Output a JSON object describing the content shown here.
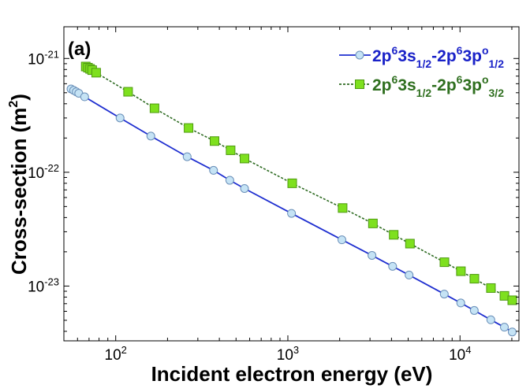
{
  "chart_data": {
    "type": "line",
    "panel_label": "(a)",
    "xlabel": "Incident electron energy (eV)",
    "ylabel": {
      "main": "Cross-section (m",
      "sup": "2",
      "close": ")"
    },
    "xscale": "log",
    "yscale": "log",
    "xlim": [
      50,
      22000
    ],
    "ylim": [
      3.3e-24,
      1.9e-21
    ],
    "x_ticks": [
      {
        "value": 100,
        "base": "10",
        "exp": "2"
      },
      {
        "value": 1000,
        "base": "10",
        "exp": "3"
      },
      {
        "value": 10000,
        "base": "10",
        "exp": "4"
      }
    ],
    "y_ticks": [
      {
        "value": 1e-21,
        "base": "10",
        "exp": "-21"
      },
      {
        "value": 1e-22,
        "base": "10",
        "exp": "-22"
      },
      {
        "value": 1e-23,
        "base": "10",
        "exp": "-23"
      }
    ],
    "grid": false,
    "legend_position": "top-right",
    "series": [
      {
        "legend_parts": [
          {
            "t": "2p",
            "s": ""
          },
          {
            "t": "6",
            "s": "sup"
          },
          {
            "t": "3s",
            "s": ""
          },
          {
            "t": "1/2",
            "s": "sub"
          },
          {
            "t": "-2p",
            "s": ""
          },
          {
            "t": "6",
            "s": "sup"
          },
          {
            "t": "3p",
            "s": ""
          },
          {
            "t": "o",
            "s": "sup"
          },
          {
            "t": "1/2",
            "s": "sub"
          }
        ],
        "color": "#1f2fd0",
        "legend_text_color": "#1a22c8",
        "marker": "circle",
        "marker_fill": "#c5e3f5",
        "marker_stroke": "#6a8fb8",
        "line_style": "solid",
        "x": [
          55,
          57,
          59,
          61,
          66,
          106,
          160,
          260,
          370,
          460,
          560,
          1050,
          2060,
          3080,
          4060,
          5060,
          8100,
          10100,
          12100,
          15100,
          18100,
          20100
        ],
        "y": [
          5.4e-22,
          5.25e-22,
          5.1e-22,
          4.95e-22,
          4.6e-22,
          3e-22,
          2.08e-22,
          1.37e-22,
          1.04e-22,
          8.5e-23,
          7.2e-23,
          4.35e-23,
          2.55e-23,
          1.86e-23,
          1.49e-23,
          1.25e-23,
          8.5e-24,
          7.1e-24,
          6.1e-24,
          5.05e-24,
          4.35e-24,
          3.95e-24
        ]
      },
      {
        "legend_parts": [
          {
            "t": "2p",
            "s": ""
          },
          {
            "t": "6",
            "s": "sup"
          },
          {
            "t": "3s",
            "s": ""
          },
          {
            "t": "1/2",
            "s": "sub"
          },
          {
            "t": "-2p",
            "s": ""
          },
          {
            "t": "6",
            "s": "sup"
          },
          {
            "t": "3p",
            "s": ""
          },
          {
            "t": "o",
            "s": "sup"
          },
          {
            "t": "3/2",
            "s": "sub"
          }
        ],
        "color": "#2e6b22",
        "legend_text_color": "#2f6f1f",
        "marker": "square",
        "marker_fill": "#7ee01e",
        "marker_stroke": "#4f9a12",
        "line_style": "dashed",
        "x": [
          67,
          69,
          71,
          73,
          77,
          118,
          168,
          265,
          375,
          465,
          560,
          1060,
          2080,
          3120,
          4120,
          5120,
          8120,
          10120,
          12120,
          15120,
          18120,
          20120
        ],
        "y": [
          8.5e-22,
          8.3e-22,
          8.1e-22,
          7.9e-22,
          7.5e-22,
          5.1e-22,
          3.65e-22,
          2.45e-22,
          1.88e-22,
          1.56e-22,
          1.32e-22,
          8e-23,
          4.85e-23,
          3.55e-23,
          2.82e-23,
          2.36e-23,
          1.62e-23,
          1.35e-23,
          1.16e-23,
          9.6e-24,
          8.2e-24,
          7.5e-24
        ]
      }
    ]
  }
}
